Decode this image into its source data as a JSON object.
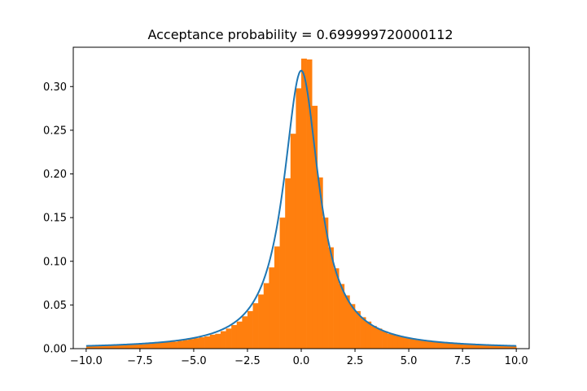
{
  "chart_data": {
    "type": "bar",
    "title": "Acceptance probability = 0.699999720000112",
    "xlabel": "",
    "ylabel": "",
    "xlim": [
      -10.6,
      10.6
    ],
    "ylim": [
      0.0,
      0.345
    ],
    "grid": false,
    "legend": "none",
    "x_ticks": [
      -10.0,
      -7.5,
      -5.0,
      -2.5,
      0.0,
      2.5,
      5.0,
      7.5,
      10.0
    ],
    "x_tick_labels": [
      "−10.0",
      "−7.5",
      "−5.0",
      "−2.5",
      "0.0",
      "2.5",
      "5.0",
      "7.5",
      "10.0"
    ],
    "y_ticks": [
      0.0,
      0.05,
      0.1,
      0.15,
      0.2,
      0.25,
      0.3
    ],
    "y_tick_labels": [
      "0.00",
      "0.05",
      "0.10",
      "0.15",
      "0.20",
      "0.25",
      "0.30"
    ],
    "series": [
      {
        "kind": "histogram",
        "color": "#ff7f0e",
        "bin_start": -10.0,
        "bin_width": 0.25,
        "values": [
          0.003,
          0.003,
          0.003,
          0.004,
          0.004,
          0.004,
          0.004,
          0.005,
          0.005,
          0.005,
          0.005,
          0.006,
          0.006,
          0.007,
          0.007,
          0.008,
          0.008,
          0.009,
          0.01,
          0.011,
          0.012,
          0.013,
          0.014,
          0.016,
          0.017,
          0.02,
          0.023,
          0.027,
          0.031,
          0.037,
          0.043,
          0.052,
          0.062,
          0.075,
          0.093,
          0.117,
          0.15,
          0.195,
          0.246,
          0.298,
          0.332,
          0.331,
          0.278,
          0.196,
          0.15,
          0.116,
          0.092,
          0.074,
          0.061,
          0.051,
          0.043,
          0.036,
          0.031,
          0.026,
          0.023,
          0.02,
          0.017,
          0.016,
          0.014,
          0.013,
          0.012,
          0.011,
          0.01,
          0.009,
          0.008,
          0.008,
          0.007,
          0.007,
          0.006,
          0.006,
          0.005,
          0.005,
          0.005,
          0.005,
          0.004,
          0.004,
          0.004,
          0.004,
          0.003,
          0.003
        ]
      },
      {
        "kind": "line",
        "color": "#1f77b4",
        "function": "cauchy",
        "location": 0.0,
        "scale": 1.0,
        "x_range": [
          -10.0,
          10.0
        ]
      }
    ]
  }
}
